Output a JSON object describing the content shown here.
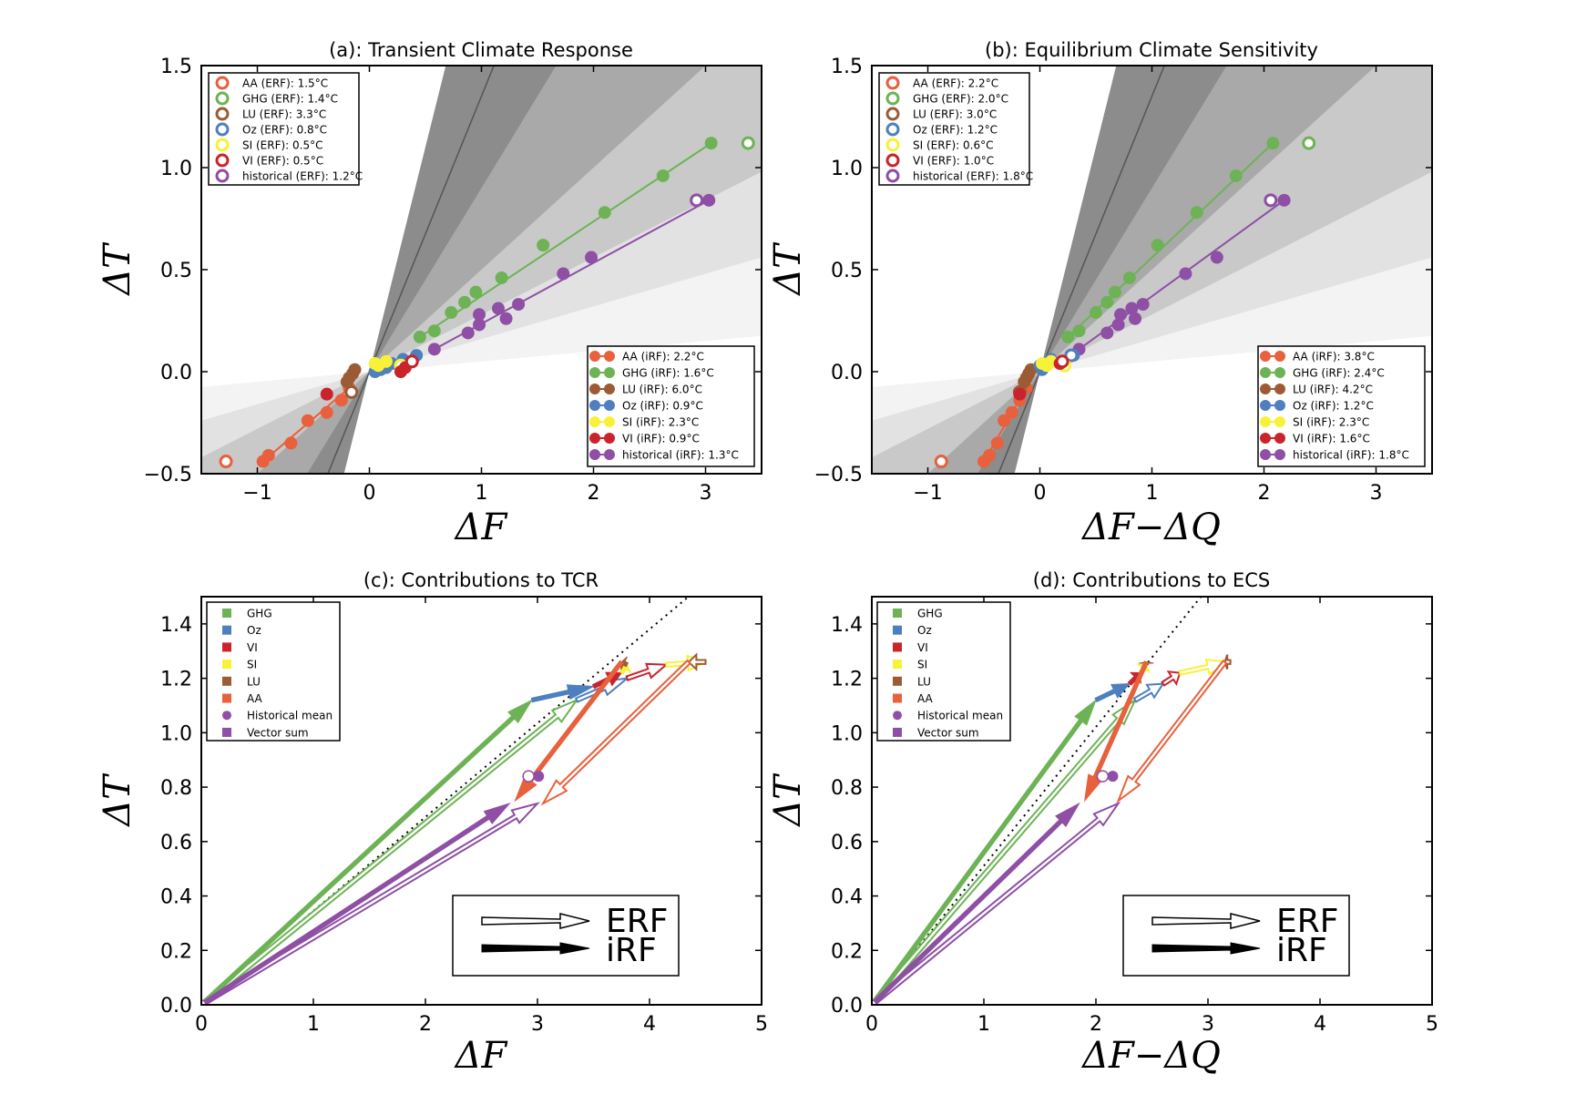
{
  "colors": {
    "AA": "#e8603c",
    "GHG": "#6db356",
    "LU": "#9c5b34",
    "Oz": "#4e7fbf",
    "SI": "#f7f238",
    "VI": "#c9242b",
    "historical": "#8e4fa5"
  },
  "chart_data": [
    {
      "type": "scatter",
      "title": "(a): Transient Climate Response",
      "xlabel": "ΔF",
      "ylabel": "ΔT",
      "xlim": [
        -1.5,
        3.5
      ],
      "ylim": [
        -0.5,
        1.5
      ],
      "xticks": [
        "−1",
        "0",
        "1",
        "2",
        "3"
      ],
      "yticks": [
        "−0.5",
        "0.0",
        "0.5",
        "1.0",
        "1.5"
      ],
      "legend_erf": [
        "AA (ERF): 1.5°C",
        "GHG (ERF): 1.4°C",
        "LU (ERF): 3.3°C",
        "Oz (ERF): 0.8°C",
        "SI (ERF): 0.5°C",
        "VI (ERF): 0.5°C",
        "historical (ERF): 1.2°C"
      ],
      "legend_irf": [
        "AA (iRF): 2.2°C",
        "GHG (iRF): 1.6°C",
        "LU (iRF): 6.0°C",
        "Oz (iRF): 0.9°C",
        "SI (iRF): 2.3°C",
        "VI (iRF): 0.9°C",
        "historical (iRF): 1.3°C"
      ],
      "series": [
        {
          "key": "AA",
          "points": [
            [
              -0.95,
              -0.44
            ],
            [
              -0.9,
              -0.41
            ],
            [
              -0.7,
              -0.35
            ],
            [
              -0.55,
              -0.24
            ],
            [
              -0.38,
              -0.2
            ],
            [
              -0.25,
              -0.14
            ],
            [
              -0.18,
              -0.08
            ]
          ],
          "open": [
            [
              -1.28,
              -0.44
            ]
          ]
        },
        {
          "key": "GHG",
          "points": [
            [
              0.45,
              0.17
            ],
            [
              0.58,
              0.2
            ],
            [
              0.73,
              0.29
            ],
            [
              0.85,
              0.34
            ],
            [
              0.95,
              0.39
            ],
            [
              1.18,
              0.46
            ],
            [
              1.55,
              0.62
            ],
            [
              2.1,
              0.78
            ],
            [
              2.62,
              0.96
            ],
            [
              3.05,
              1.12
            ]
          ],
          "open": [
            [
              3.38,
              1.12
            ]
          ]
        },
        {
          "key": "historical",
          "points": [
            [
              0.58,
              0.11
            ],
            [
              0.88,
              0.19
            ],
            [
              0.98,
              0.23
            ],
            [
              0.98,
              0.28
            ],
            [
              1.15,
              0.31
            ],
            [
              1.22,
              0.26
            ],
            [
              1.33,
              0.33
            ],
            [
              1.73,
              0.48
            ],
            [
              1.98,
              0.56
            ],
            [
              3.03,
              0.84
            ]
          ],
          "open": [
            [
              2.92,
              0.84
            ]
          ]
        },
        {
          "key": "LU",
          "points": [
            [
              -0.18,
              -0.03
            ],
            [
              -0.15,
              -0.01
            ],
            [
              -0.13,
              0.01
            ],
            [
              -0.2,
              -0.05
            ]
          ],
          "open": [
            [
              -0.16,
              -0.1
            ]
          ]
        },
        {
          "key": "Oz",
          "points": [
            [
              0.05,
              0.0
            ],
            [
              0.15,
              0.02
            ],
            [
              0.2,
              0.04
            ],
            [
              0.3,
              0.06
            ],
            [
              0.42,
              0.08
            ],
            [
              0.1,
              0.01
            ]
          ],
          "open": []
        },
        {
          "key": "SI",
          "points": [
            [
              0.05,
              0.04
            ],
            [
              0.08,
              0.03
            ],
            [
              0.15,
              0.05
            ]
          ],
          "open": [
            [
              0.28,
              0.03
            ]
          ]
        },
        {
          "key": "VI",
          "points": [
            [
              -0.38,
              -0.11
            ],
            [
              0.28,
              0.0
            ],
            [
              0.32,
              0.02
            ]
          ],
          "open": [
            [
              0.38,
              0.05
            ]
          ]
        }
      ]
    },
    {
      "type": "scatter",
      "title": "(b): Equilibrium Climate Sensitivity",
      "xlabel": "ΔF−ΔQ",
      "ylabel": "ΔT",
      "xlim": [
        -1.5,
        3.5
      ],
      "ylim": [
        -0.5,
        1.5
      ],
      "xticks": [
        "−1",
        "0",
        "1",
        "2",
        "3"
      ],
      "yticks": [
        "−0.5",
        "0.0",
        "0.5",
        "1.0",
        "1.5"
      ],
      "legend_erf": [
        "AA (ERF): 2.2°C",
        "GHG (ERF): 2.0°C",
        "LU (ERF): 3.0°C",
        "Oz (ERF): 1.2°C",
        "SI (ERF): 0.6°C",
        "VI (ERF): 1.0°C",
        "historical (ERF): 1.8°C"
      ],
      "legend_irf": [
        "AA (iRF): 3.8°C",
        "GHG (iRF): 2.4°C",
        "LU (iRF): 4.2°C",
        "Oz (iRF): 1.2°C",
        "SI (iRF): 2.3°C",
        "VI (iRF): 1.6°C",
        "historical (iRF): 1.8°C"
      ],
      "series": [
        {
          "key": "AA",
          "points": [
            [
              -0.5,
              -0.44
            ],
            [
              -0.45,
              -0.41
            ],
            [
              -0.38,
              -0.35
            ],
            [
              -0.32,
              -0.24
            ],
            [
              -0.25,
              -0.2
            ],
            [
              -0.18,
              -0.14
            ],
            [
              -0.12,
              -0.08
            ]
          ],
          "open": [
            [
              -0.88,
              -0.44
            ]
          ]
        },
        {
          "key": "GHG",
          "points": [
            [
              0.25,
              0.17
            ],
            [
              0.35,
              0.2
            ],
            [
              0.5,
              0.29
            ],
            [
              0.6,
              0.34
            ],
            [
              0.67,
              0.39
            ],
            [
              0.8,
              0.46
            ],
            [
              1.05,
              0.62
            ],
            [
              1.4,
              0.78
            ],
            [
              1.75,
              0.96
            ],
            [
              2.08,
              1.12
            ]
          ],
          "open": [
            [
              2.4,
              1.12
            ]
          ]
        },
        {
          "key": "historical",
          "points": [
            [
              0.35,
              0.11
            ],
            [
              0.6,
              0.19
            ],
            [
              0.7,
              0.23
            ],
            [
              0.72,
              0.28
            ],
            [
              0.82,
              0.31
            ],
            [
              0.85,
              0.26
            ],
            [
              0.92,
              0.33
            ],
            [
              1.3,
              0.48
            ],
            [
              1.58,
              0.56
            ],
            [
              2.18,
              0.84
            ]
          ],
          "open": [
            [
              2.06,
              0.84
            ]
          ]
        },
        {
          "key": "LU",
          "points": [
            [
              -0.12,
              -0.03
            ],
            [
              -0.1,
              -0.01
            ],
            [
              -0.08,
              0.01
            ],
            [
              -0.14,
              -0.05
            ]
          ],
          "open": [
            [
              -0.18,
              -0.1
            ]
          ]
        },
        {
          "key": "Oz",
          "points": [
            [
              0.0,
              0.03
            ],
            [
              0.05,
              0.04
            ],
            [
              0.1,
              0.06
            ],
            [
              0.3,
              0.08
            ],
            [
              0.02,
              0.01
            ]
          ],
          "open": [
            [
              0.28,
              0.08
            ]
          ]
        },
        {
          "key": "SI",
          "points": [
            [
              0.02,
              0.04
            ],
            [
              0.06,
              0.03
            ],
            [
              0.1,
              0.05
            ]
          ],
          "open": [
            [
              0.22,
              0.03
            ]
          ]
        },
        {
          "key": "VI",
          "points": [
            [
              -0.18,
              -0.11
            ],
            [
              0.18,
              0.04
            ],
            [
              0.2,
              0.05
            ]
          ],
          "open": [
            [
              0.2,
              0.05
            ]
          ]
        }
      ]
    },
    {
      "type": "vector",
      "title": "(c): Contributions to TCR",
      "xlabel": "ΔF",
      "ylabel": "ΔT",
      "xlim": [
        0,
        5
      ],
      "ylim": [
        0,
        1.5
      ],
      "xticks": [
        "0",
        "1",
        "2",
        "3",
        "4",
        "5"
      ],
      "yticks": [
        "0.0",
        "0.2",
        "0.4",
        "0.6",
        "0.8",
        "1.0",
        "1.2",
        "1.4"
      ],
      "legend": [
        "GHG",
        "Oz",
        "VI",
        "SI",
        "LU",
        "AA",
        "Historical mean",
        "Vector sum"
      ],
      "inset_labels": [
        "ERF",
        "iRF"
      ],
      "historical_mean": {
        "irf": [
          3.01,
          0.84
        ],
        "erf": [
          2.92,
          0.84
        ]
      },
      "irf": [
        {
          "key": "GHG",
          "to": [
            2.95,
            1.12
          ]
        },
        {
          "key": "Oz",
          "to": [
            3.5,
            1.17
          ]
        },
        {
          "key": "VI",
          "to": [
            3.75,
            1.22
          ]
        },
        {
          "key": "SI",
          "to": [
            3.8,
            1.25
          ]
        },
        {
          "key": "LU",
          "to": [
            3.75,
            1.26
          ]
        },
        {
          "key": "AA",
          "to": [
            2.8,
            0.75
          ]
        },
        {
          "key": "historical",
          "to": [
            2.75,
            0.74
          ]
        }
      ],
      "erf": [
        {
          "key": "GHG",
          "to": [
            3.35,
            1.12
          ]
        },
        {
          "key": "Oz",
          "to": [
            3.8,
            1.2
          ]
        },
        {
          "key": "VI",
          "to": [
            4.15,
            1.25
          ]
        },
        {
          "key": "SI",
          "to": [
            4.5,
            1.26
          ]
        },
        {
          "key": "LU",
          "to": [
            4.35,
            1.26
          ]
        },
        {
          "key": "AA",
          "to": [
            3.05,
            0.74
          ]
        },
        {
          "key": "historical",
          "to": [
            3.0,
            0.74
          ]
        }
      ]
    },
    {
      "type": "vector",
      "title": "(d): Contributions to ECS",
      "xlabel": "ΔF−ΔQ",
      "ylabel": "ΔT",
      "xlim": [
        0,
        5
      ],
      "ylim": [
        0,
        1.5
      ],
      "xticks": [
        "0",
        "1",
        "2",
        "3",
        "4",
        "5"
      ],
      "yticks": [
        "0.0",
        "0.2",
        "0.4",
        "0.6",
        "0.8",
        "1.0",
        "1.2",
        "1.4"
      ],
      "legend": [
        "GHG",
        "Oz",
        "VI",
        "SI",
        "LU",
        "AA",
        "Historical mean",
        "Vector sum"
      ],
      "inset_labels": [
        "ERF",
        "iRF"
      ],
      "historical_mean": {
        "irf": [
          2.15,
          0.84
        ],
        "erf": [
          2.06,
          0.84
        ]
      },
      "irf": [
        {
          "key": "GHG",
          "to": [
            2.0,
            1.12
          ]
        },
        {
          "key": "Oz",
          "to": [
            2.3,
            1.18
          ]
        },
        {
          "key": "VI",
          "to": [
            2.4,
            1.22
          ]
        },
        {
          "key": "SI",
          "to": [
            2.45,
            1.25
          ]
        },
        {
          "key": "LU",
          "to": [
            2.45,
            1.26
          ]
        },
        {
          "key": "AA",
          "to": [
            1.9,
            0.75
          ]
        },
        {
          "key": "historical",
          "to": [
            1.85,
            0.74
          ]
        }
      ],
      "erf": [
        {
          "key": "GHG",
          "to": [
            2.35,
            1.12
          ]
        },
        {
          "key": "Oz",
          "to": [
            2.6,
            1.18
          ]
        },
        {
          "key": "VI",
          "to": [
            2.75,
            1.22
          ]
        },
        {
          "key": "SI",
          "to": [
            3.2,
            1.26
          ]
        },
        {
          "key": "LU",
          "to": [
            3.15,
            1.26
          ]
        },
        {
          "key": "AA",
          "to": [
            2.2,
            0.75
          ]
        },
        {
          "key": "historical",
          "to": [
            2.2,
            0.74
          ]
        }
      ]
    }
  ]
}
